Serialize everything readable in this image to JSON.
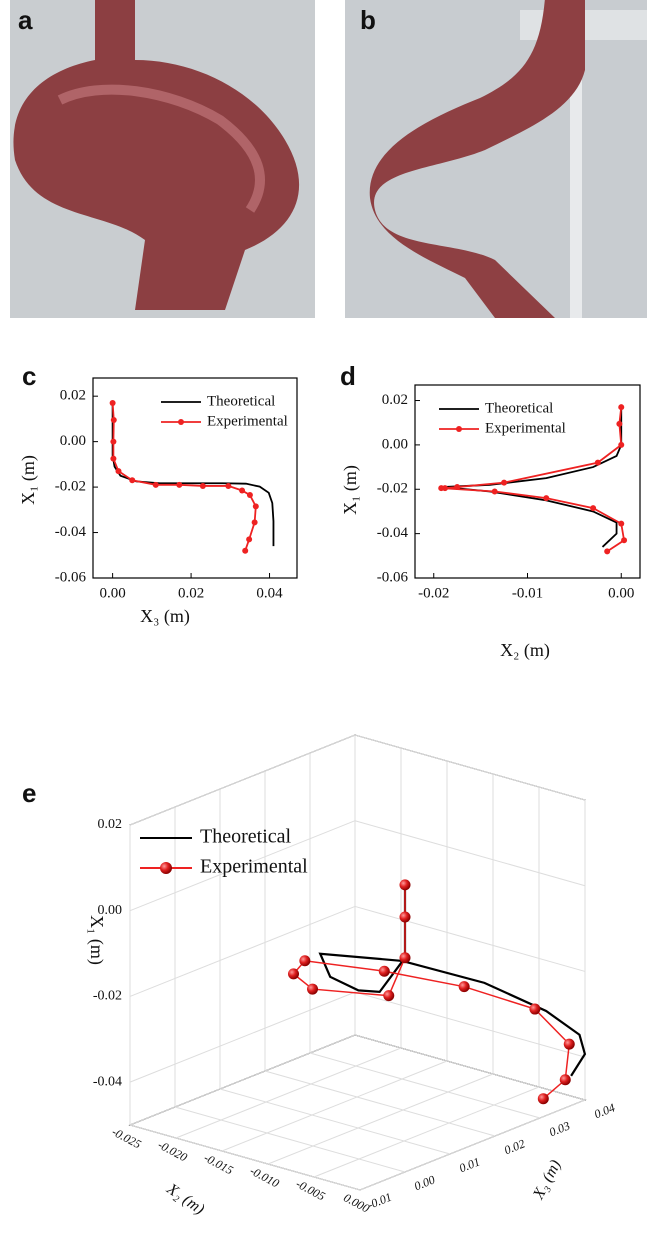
{
  "photos": [
    {
      "label": "a"
    },
    {
      "label": "b"
    }
  ],
  "chart_data": [
    {
      "type": "line",
      "panel": "c",
      "xlabel": "X₃ (m)",
      "ylabel": "X₁ (m)",
      "xlim": [
        -0.005,
        0.047
      ],
      "xticks": [
        {
          "value": 0,
          "label": "0.00"
        },
        0.02,
        0.04
      ],
      "ylim": [
        -0.06,
        0.028
      ],
      "yticks": [
        0.02,
        {
          "value": 0,
          "label": "0.00"
        },
        -0.02,
        -0.04,
        -0.06
      ],
      "legend": "top-right",
      "series": [
        {
          "name": "Theoretical",
          "color": "#000000",
          "markers": false,
          "x": [
            0,
            0,
            0,
            0.0005,
            0.002,
            0.006,
            0.012,
            0.02,
            0.028,
            0.034,
            0.0375,
            0.0398,
            0.0407,
            0.041,
            0.041
          ],
          "values": [
            0.017,
            0.005,
            -0.006,
            -0.011,
            -0.015,
            -0.0175,
            -0.0183,
            -0.0183,
            -0.0183,
            -0.0185,
            -0.0198,
            -0.0225,
            -0.027,
            -0.035,
            -0.046
          ]
        },
        {
          "name": "Experimental",
          "color": "#ee2222",
          "markers": true,
          "x": [
            0,
            0.0003,
            0.0002,
            0.0002,
            0.0015,
            0.005,
            0.011,
            0.017,
            0.023,
            0.0295,
            0.033,
            0.035,
            0.0365,
            0.0362,
            0.0348,
            0.0338
          ],
          "values": [
            0.017,
            0.0095,
            0,
            -0.0075,
            -0.013,
            -0.017,
            -0.019,
            -0.019,
            -0.0195,
            -0.0195,
            -0.0215,
            -0.0235,
            -0.0285,
            -0.0355,
            -0.043,
            -0.048
          ]
        }
      ]
    },
    {
      "type": "line",
      "panel": "d",
      "xlabel": "X₂ (m)",
      "ylabel": "X₁ (m)",
      "xlim": [
        -0.022,
        0.002
      ],
      "xticks": [
        -0.02,
        -0.01,
        {
          "value": 0,
          "label": "0.00"
        }
      ],
      "ylim": [
        -0.06,
        0.027
      ],
      "yticks": [
        0.02,
        {
          "value": 0,
          "label": "0.00"
        },
        -0.02,
        -0.04,
        -0.06
      ],
      "legend": "top-left",
      "series": [
        {
          "name": "Theoretical",
          "color": "#000000",
          "markers": false,
          "x": [
            0,
            0,
            -0.0005,
            -0.003,
            -0.008,
            -0.014,
            -0.019,
            -0.014,
            -0.008,
            -0.003,
            -0.0005,
            -0.0005,
            -0.002
          ],
          "values": [
            0.017,
            0,
            -0.005,
            -0.01,
            -0.015,
            -0.018,
            -0.019,
            -0.021,
            -0.025,
            -0.03,
            -0.035,
            -0.04,
            -0.046
          ]
        },
        {
          "name": "Experimental",
          "color": "#ee2222",
          "markers": true,
          "x": [
            0,
            -0.0002,
            0,
            -0.0025,
            -0.0125,
            -0.0175,
            -0.0188,
            -0.0192,
            -0.0135,
            -0.008,
            -0.003,
            0,
            0.0003,
            -0.0015
          ],
          "values": [
            0.017,
            0.0095,
            0,
            -0.008,
            -0.017,
            -0.019,
            -0.0195,
            -0.0195,
            -0.021,
            -0.024,
            -0.0285,
            -0.0355,
            -0.043,
            -0.048
          ]
        }
      ]
    },
    {
      "type": "line3d",
      "panel": "e",
      "xlabel": "X₂ (m)",
      "ylabel": "X₃ (m)",
      "zlabel": "X₁ (m)",
      "xlim": [
        -0.025,
        0
      ],
      "xticks": [
        -0.025,
        {
          "value": -0.02,
          "label": "-0.020"
        },
        -0.015,
        {
          "value": -0.01,
          "label": "-0.010"
        },
        -0.005,
        {
          "value": 0,
          "label": "0.000"
        }
      ],
      "ylim": [
        -0.01,
        0.04
      ],
      "yticks": [
        -0.01,
        {
          "value": 0,
          "label": "0.00"
        },
        0.01,
        0.02,
        0.03,
        0.04
      ],
      "zlim": [
        -0.05,
        0.02
      ],
      "zticks": [
        0.02,
        {
          "value": 0,
          "label": "0.00"
        },
        -0.02,
        -0.04
      ],
      "grid": true,
      "series": [
        {
          "name": "Theoretical",
          "color": "#000000",
          "markers": false,
          "x": [
            0,
            0,
            -0.003,
            -0.008,
            -0.014,
            -0.019,
            -0.014,
            -0.008,
            -0.003,
            -0.0005,
            -0.0005,
            -0.002
          ],
          "y": [
            0,
            0,
            0.0005,
            0.006,
            0.012,
            0.02,
            0.028,
            0.034,
            0.0375,
            0.0398,
            0.041,
            0.041
          ],
          "z": [
            0.017,
            0,
            -0.01,
            -0.015,
            -0.018,
            -0.019,
            -0.021,
            -0.025,
            -0.03,
            -0.035,
            -0.04,
            -0.046
          ]
        },
        {
          "name": "Experimental",
          "color": "#ee2222",
          "markers": true,
          "x": [
            0,
            0,
            0,
            -0.0025,
            -0.0125,
            -0.0175,
            -0.0192,
            -0.0135,
            -0.008,
            -0.003,
            0,
            0.0003,
            -0.0015
          ],
          "y": [
            0,
            0,
            0,
            0.0015,
            0.005,
            0.011,
            0.017,
            0.023,
            0.0295,
            0.035,
            0.0365,
            0.035,
            0.0338
          ],
          "z": [
            0.017,
            0.0095,
            0,
            -0.011,
            -0.017,
            -0.019,
            -0.0195,
            -0.021,
            -0.024,
            -0.0285,
            -0.0355,
            -0.043,
            -0.048
          ]
        }
      ]
    }
  ]
}
